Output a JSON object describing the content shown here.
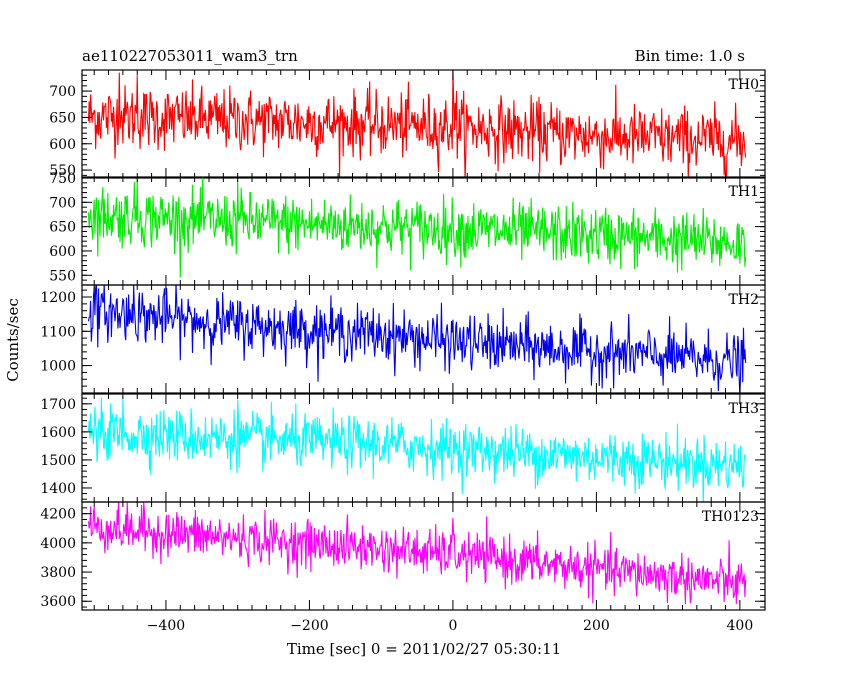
{
  "header": {
    "title_left": "ae110227053011_wam3_trn",
    "title_right": "Bin time: 1.0 s"
  },
  "axes": {
    "xlabel": "Time [sec] 0 = 2011/02/27 05:30:11",
    "ylabel": "Counts/sec"
  },
  "chart_data": {
    "type": "line",
    "bin_time_s": 1.0,
    "xlim": [
      -517,
      435
    ],
    "x_ticks": [
      -400,
      -200,
      0,
      200,
      400
    ],
    "x_range_data": [
      -508,
      408
    ],
    "grid": false,
    "panels": [
      {
        "name": "TH0",
        "color": "#ff0000",
        "ylim": [
          535,
          740
        ],
        "y_ticks": [
          550,
          600,
          650,
          700
        ],
        "trend": [
          [
            -508,
            652
          ],
          [
            -300,
            645
          ],
          [
            -100,
            636
          ],
          [
            0,
            632
          ],
          [
            200,
            615
          ],
          [
            408,
            605
          ]
        ],
        "noise_sd": 30,
        "spikes": [
          [
            -465,
            735
          ],
          [
            -440,
            730
          ],
          [
            0,
            740
          ],
          [
            5,
            700
          ]
        ]
      },
      {
        "name": "TH1",
        "color": "#00ee00",
        "ylim": [
          530,
          752
        ],
        "y_ticks": [
          550,
          600,
          650,
          700,
          750
        ],
        "trend": [
          [
            -508,
            675
          ],
          [
            -300,
            660
          ],
          [
            -100,
            650
          ],
          [
            0,
            645
          ],
          [
            200,
            632
          ],
          [
            408,
            615
          ]
        ],
        "noise_sd": 30,
        "spikes": [
          [
            -440,
            750
          ],
          [
            -300,
            745
          ]
        ]
      },
      {
        "name": "TH2",
        "color": "#0000ee",
        "ylim": [
          920,
          1235
        ],
        "y_ticks": [
          1000,
          1100,
          1200
        ],
        "trend": [
          [
            -508,
            1160
          ],
          [
            -300,
            1120
          ],
          [
            -100,
            1090
          ],
          [
            0,
            1070
          ],
          [
            200,
            1040
          ],
          [
            408,
            1010
          ]
        ],
        "noise_sd": 40,
        "spikes": [
          [
            -500,
            1230
          ],
          [
            -445,
            1235
          ]
        ]
      },
      {
        "name": "TH3",
        "color": "#00ffff",
        "ylim": [
          1350,
          1735
        ],
        "y_ticks": [
          1400,
          1500,
          1600,
          1700
        ],
        "trend": [
          [
            -508,
            1600
          ],
          [
            -300,
            1575
          ],
          [
            -100,
            1555
          ],
          [
            0,
            1540
          ],
          [
            200,
            1510
          ],
          [
            408,
            1480
          ]
        ],
        "noise_sd": 48,
        "spikes": [
          [
            -460,
            1720
          ],
          [
            -300,
            1715
          ]
        ]
      },
      {
        "name": "TH0123",
        "color": "#ff00ff",
        "ylim": [
          3540,
          4280
        ],
        "y_ticks": [
          3600,
          3800,
          4000,
          4200
        ],
        "trend": [
          [
            -508,
            4110
          ],
          [
            -300,
            4030
          ],
          [
            -100,
            3960
          ],
          [
            0,
            3920
          ],
          [
            200,
            3820
          ],
          [
            408,
            3720
          ]
        ],
        "noise_sd": 80,
        "spikes": [
          [
            0,
            4170
          ],
          [
            -505,
            4250
          ]
        ]
      }
    ]
  }
}
